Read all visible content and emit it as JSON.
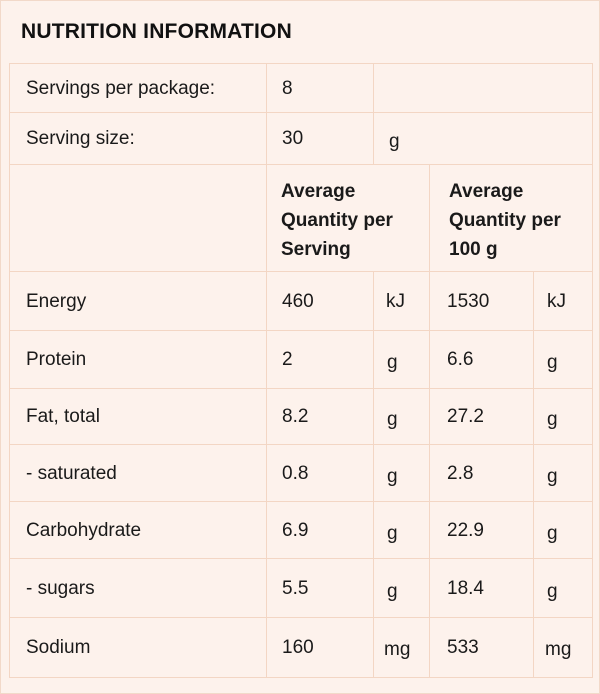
{
  "title": "NUTRITION INFORMATION",
  "servings_per_package": {
    "label": "Servings per package:",
    "value": "8"
  },
  "serving_size": {
    "label": "Serving size:",
    "value": "30",
    "unit": "g"
  },
  "columns": {
    "per_serving": "Average Quantity per Serving",
    "per_100g": "Average Quantity per 100 g"
  },
  "rows": [
    {
      "name": "Energy",
      "serving": "460",
      "serving_unit": "kJ",
      "per100": "1530",
      "per100_unit": "kJ"
    },
    {
      "name": "Protein",
      "serving": "2",
      "serving_unit": "g",
      "per100": "6.6",
      "per100_unit": "g"
    },
    {
      "name": "Fat, total",
      "serving": "8.2",
      "serving_unit": "g",
      "per100": "27.2",
      "per100_unit": "g"
    },
    {
      "name": " - saturated",
      "serving": "0.8",
      "serving_unit": "g",
      "per100": "2.8",
      "per100_unit": "g"
    },
    {
      "name": "Carbohydrate",
      "serving": "6.9",
      "serving_unit": "g",
      "per100": "22.9",
      "per100_unit": "g"
    },
    {
      "name": "- sugars",
      "serving": "5.5",
      "serving_unit": "g",
      "per100": "18.4",
      "per100_unit": "g"
    },
    {
      "name": "Sodium",
      "serving": "160",
      "serving_unit": "mg",
      "per100": "533",
      "per100_unit": "mg"
    }
  ]
}
